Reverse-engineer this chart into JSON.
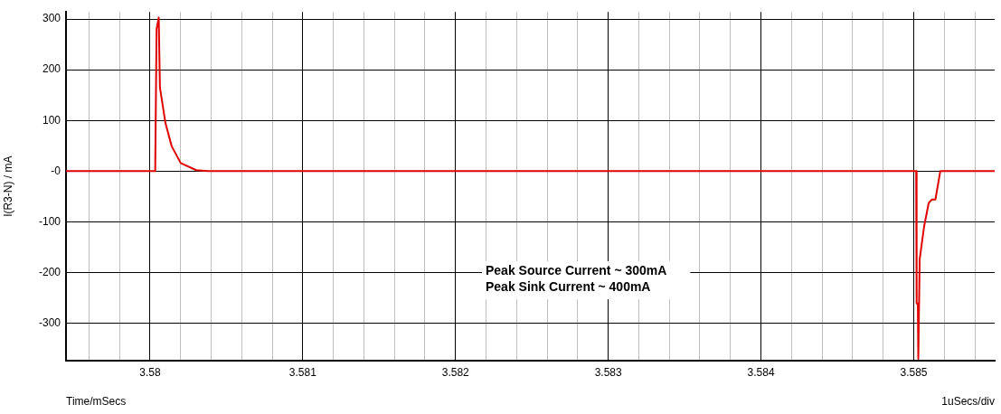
{
  "chart_data": {
    "type": "line",
    "xlabel": "Time/mSecs",
    "ylabel": "I(R3-N) / mA",
    "xlim": [
      3.57945,
      3.58553
    ],
    "ylim": [
      -374,
      314
    ],
    "xticks": [
      {
        "value": 3.5796,
        "label": null
      },
      {
        "value": 3.5798,
        "label": null
      },
      3.58,
      {
        "value": 3.5802,
        "label": null
      },
      {
        "value": 3.5804,
        "label": null
      },
      {
        "value": 3.5806,
        "label": null
      },
      {
        "value": 3.5808,
        "label": null
      },
      3.581,
      {
        "value": 3.5812,
        "label": null
      },
      {
        "value": 3.5814,
        "label": null
      },
      {
        "value": 3.5816,
        "label": null
      },
      {
        "value": 3.5818,
        "label": null
      },
      3.582,
      {
        "value": 3.5822,
        "label": null
      },
      {
        "value": 3.5824,
        "label": null
      },
      {
        "value": 3.5826,
        "label": null
      },
      {
        "value": 3.5828,
        "label": null
      },
      3.583,
      {
        "value": 3.5832,
        "label": null
      },
      {
        "value": 3.5834,
        "label": null
      },
      {
        "value": 3.5836,
        "label": null
      },
      {
        "value": 3.5838,
        "label": null
      },
      3.584,
      {
        "value": 3.5842,
        "label": null
      },
      {
        "value": 3.5844,
        "label": null
      },
      {
        "value": 3.5846,
        "label": null
      },
      {
        "value": 3.5848,
        "label": null
      },
      3.585,
      {
        "value": 3.5852,
        "label": null
      },
      {
        "value": 3.5854,
        "label": null
      }
    ],
    "yticks": [
      -300,
      -200,
      -100,
      {
        "value": 0,
        "label": "-0"
      },
      100,
      200,
      300
    ],
    "grid": true,
    "legend": false,
    "marker": "none",
    "line_style": "solid",
    "series": [
      {
        "color": "#e00000",
        "x": [
          3.57945,
          3.580034,
          3.580043,
          3.580057,
          3.580065,
          3.580101,
          3.580142,
          3.580201,
          3.580302,
          3.580379,
          3.585016,
          3.585019,
          3.585027,
          3.585029,
          3.585031,
          3.585039,
          3.585068,
          3.585098,
          3.585118,
          3.585142,
          3.585174,
          3.58553
        ],
        "values": [
          0,
          0,
          280,
          303,
          165,
          95,
          49,
          16,
          2,
          0,
          0,
          -261,
          -261,
          -370,
          -370,
          -174,
          -109,
          -63,
          -56,
          -56,
          0,
          0
        ]
      }
    ],
    "annotations": [
      "Peak Source Current ~ 300mA\nPeak Sink Current ~ 400mA",
      "1uSecs/div"
    ]
  }
}
